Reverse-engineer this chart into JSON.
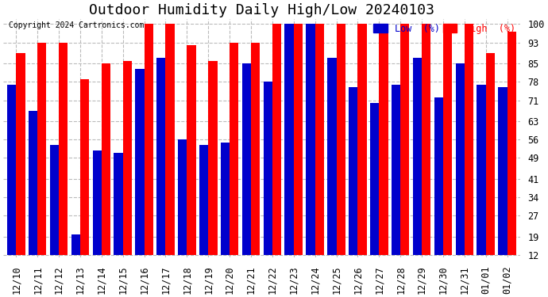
{
  "title": "Outdoor Humidity Daily High/Low 20240103",
  "copyright": "Copyright 2024 Cartronics.com",
  "legend_low": "Low  (%)",
  "legend_high": "High  (%)",
  "dates": [
    "12/10",
    "12/11",
    "12/12",
    "12/13",
    "12/14",
    "12/15",
    "12/16",
    "12/17",
    "12/18",
    "12/19",
    "12/20",
    "12/21",
    "12/22",
    "12/23",
    "12/24",
    "12/25",
    "12/26",
    "12/27",
    "12/28",
    "12/29",
    "12/30",
    "12/31",
    "01/01",
    "01/02"
  ],
  "high": [
    89,
    93,
    93,
    79,
    85,
    86,
    100,
    100,
    92,
    86,
    93,
    93,
    100,
    100,
    100,
    100,
    100,
    100,
    100,
    100,
    100,
    100,
    89,
    97
  ],
  "low": [
    77,
    67,
    54,
    20,
    52,
    51,
    83,
    87,
    56,
    54,
    55,
    85,
    78,
    100,
    100,
    87,
    76,
    70,
    77,
    87,
    72,
    85,
    77,
    76
  ],
  "bar_color_high": "#ff0000",
  "bar_color_low": "#0000cc",
  "background_color": "#ffffff",
  "grid_color": "#bbbbbb",
  "title_color": "#000000",
  "yticks": [
    12,
    19,
    27,
    34,
    41,
    49,
    56,
    63,
    71,
    78,
    85,
    93,
    100
  ],
  "ymin": 12,
  "ymax": 100,
  "title_fontsize": 13,
  "tick_fontsize": 8.5,
  "bar_width": 0.42,
  "figwidth": 6.9,
  "figheight": 3.75,
  "dpi": 100
}
